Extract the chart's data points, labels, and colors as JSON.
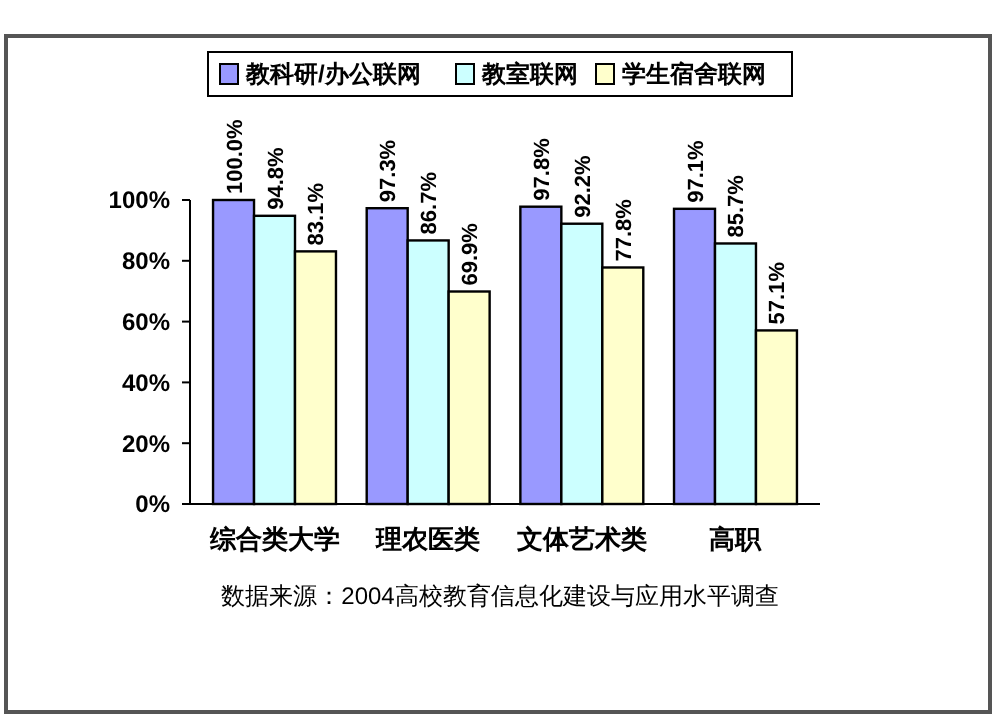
{
  "chart_data": {
    "type": "bar",
    "categories": [
      "综合类大学",
      "理农医类",
      "文体艺术类",
      "高职"
    ],
    "series": [
      {
        "name": "教科研/办公联网",
        "color": "#9999ff",
        "values": [
          100.0,
          97.3,
          97.8,
          97.1
        ],
        "value_labels": [
          "100.0%",
          "97.3%",
          "97.8%",
          "97.1%"
        ]
      },
      {
        "name": "教室联网",
        "color": "#ccffff",
        "values": [
          94.8,
          86.7,
          92.2,
          85.7
        ],
        "value_labels": [
          "94.8%",
          "86.7%",
          "92.2%",
          "85.7%"
        ]
      },
      {
        "name": "学生宿舍联网",
        "color": "#ffffcc",
        "values": [
          83.1,
          69.9,
          77.8,
          57.1
        ],
        "value_labels": [
          "83.1%",
          "69.9%",
          "77.8%",
          "57.1%"
        ]
      }
    ],
    "ylim": [
      0,
      100
    ],
    "yticks": [
      {
        "value": 0,
        "label": "0%"
      },
      {
        "value": 20,
        "label": "20%"
      },
      {
        "value": 40,
        "label": "40%"
      },
      {
        "value": 60,
        "label": "60%"
      },
      {
        "value": 80,
        "label": "80%"
      },
      {
        "value": 100,
        "label": "100%"
      }
    ],
    "grid": false,
    "legend": "top",
    "annotations": [
      "数据来源：2004高校教育信息化建设与应用水平调查"
    ]
  }
}
